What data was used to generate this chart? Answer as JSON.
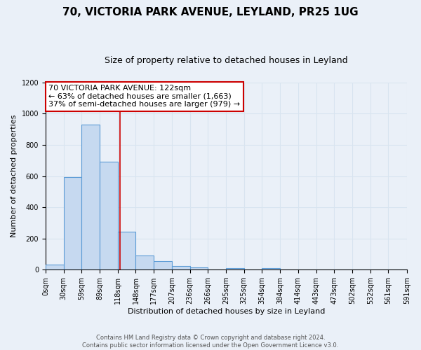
{
  "title": "70, VICTORIA PARK AVENUE, LEYLAND, PR25 1UG",
  "subtitle": "Size of property relative to detached houses in Leyland",
  "xlabel": "Distribution of detached houses by size in Leyland",
  "ylabel": "Number of detached properties",
  "bin_edges": [
    0,
    29.5,
    59,
    88.5,
    118,
    147.5,
    177,
    206.5,
    236,
    265.5,
    295,
    324.5,
    354,
    383.5,
    413,
    442.5,
    472,
    501.5,
    531,
    560.5,
    591
  ],
  "bar_heights": [
    35,
    595,
    930,
    690,
    245,
    90,
    57,
    22,
    15,
    0,
    12,
    0,
    12,
    0,
    0,
    0,
    0,
    0,
    0,
    0
  ],
  "bar_color": "#c6d9f0",
  "bar_edge_color": "#5b9bd5",
  "bar_edge_width": 0.8,
  "red_line_x": 122,
  "red_line_color": "#cc0000",
  "annotation_text": "70 VICTORIA PARK AVENUE: 122sqm\n← 63% of detached houses are smaller (1,663)\n37% of semi-detached houses are larger (979) →",
  "annotation_box_color": "#ffffff",
  "annotation_box_edge_color": "#cc0000",
  "xlim": [
    0,
    591
  ],
  "ylim": [
    0,
    1200
  ],
  "yticks": [
    0,
    200,
    400,
    600,
    800,
    1000,
    1200
  ],
  "xtick_labels": [
    "0sqm",
    "30sqm",
    "59sqm",
    "89sqm",
    "118sqm",
    "148sqm",
    "177sqm",
    "207sqm",
    "236sqm",
    "266sqm",
    "295sqm",
    "325sqm",
    "354sqm",
    "384sqm",
    "414sqm",
    "443sqm",
    "473sqm",
    "502sqm",
    "532sqm",
    "561sqm",
    "591sqm"
  ],
  "xtick_positions": [
    0,
    29.5,
    59,
    88.5,
    118,
    147.5,
    177,
    206.5,
    236,
    265.5,
    295,
    324.5,
    354,
    383.5,
    413,
    442.5,
    472,
    501.5,
    531,
    560.5,
    591
  ],
  "grid_color": "#d8e4f0",
  "background_color": "#eaf0f8",
  "fig_background_color": "#eaf0f8",
  "footer_text": "Contains HM Land Registry data © Crown copyright and database right 2024.\nContains public sector information licensed under the Open Government Licence v3.0.",
  "title_fontsize": 11,
  "subtitle_fontsize": 9,
  "axis_label_fontsize": 8,
  "tick_fontsize": 7,
  "annotation_fontsize": 8,
  "footer_fontsize": 6
}
